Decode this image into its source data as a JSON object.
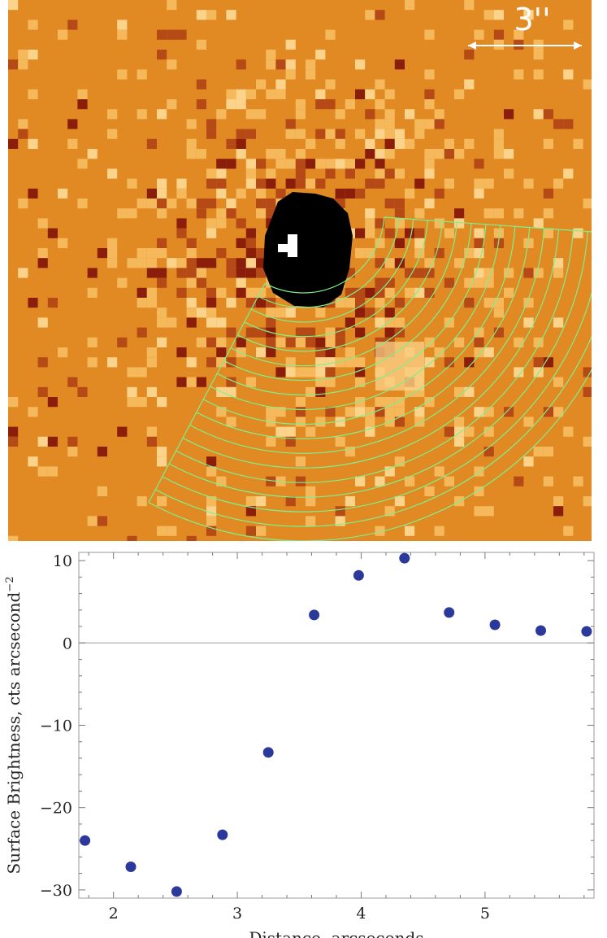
{
  "image": {
    "scale_bar_label": "3''",
    "colors": {
      "background": "#e18a24",
      "light": "#f5b85a",
      "lighter": "#fbd38a",
      "dark": "#b54a16",
      "darker": "#8a1e0a",
      "core": "#000000",
      "region": "#7ef08a",
      "scale_bar": "#ffffff"
    }
  },
  "chart_data": {
    "type": "scatter",
    "xlabel": "Distance, arcseconds",
    "ylabel": "Surface Brightness, cts arcsecond",
    "ylabel_exponent": "−2",
    "xlim": [
      1.72,
      5.88
    ],
    "ylim": [
      -31,
      11
    ],
    "x_ticks": [
      2,
      3,
      4,
      5
    ],
    "x_tick_labels": [
      "2",
      "3",
      "4",
      "5"
    ],
    "y_ticks": [
      -30,
      -20,
      -10,
      0,
      10
    ],
    "y_tick_labels": [
      "−30",
      "−20",
      "−10",
      "0",
      "10"
    ],
    "zero_line": true,
    "marker_color": "#2b3a9a",
    "points": [
      {
        "x": 1.77,
        "y": -24.0
      },
      {
        "x": 2.14,
        "y": -27.2
      },
      {
        "x": 2.51,
        "y": -30.2
      },
      {
        "x": 2.88,
        "y": -23.3
      },
      {
        "x": 3.25,
        "y": -13.3
      },
      {
        "x": 3.62,
        "y": 3.4
      },
      {
        "x": 3.98,
        "y": 8.2
      },
      {
        "x": 4.35,
        "y": 10.3
      },
      {
        "x": 4.71,
        "y": 3.7
      },
      {
        "x": 5.08,
        "y": 2.2
      },
      {
        "x": 5.45,
        "y": 1.5
      },
      {
        "x": 5.82,
        "y": 1.4
      }
    ]
  }
}
